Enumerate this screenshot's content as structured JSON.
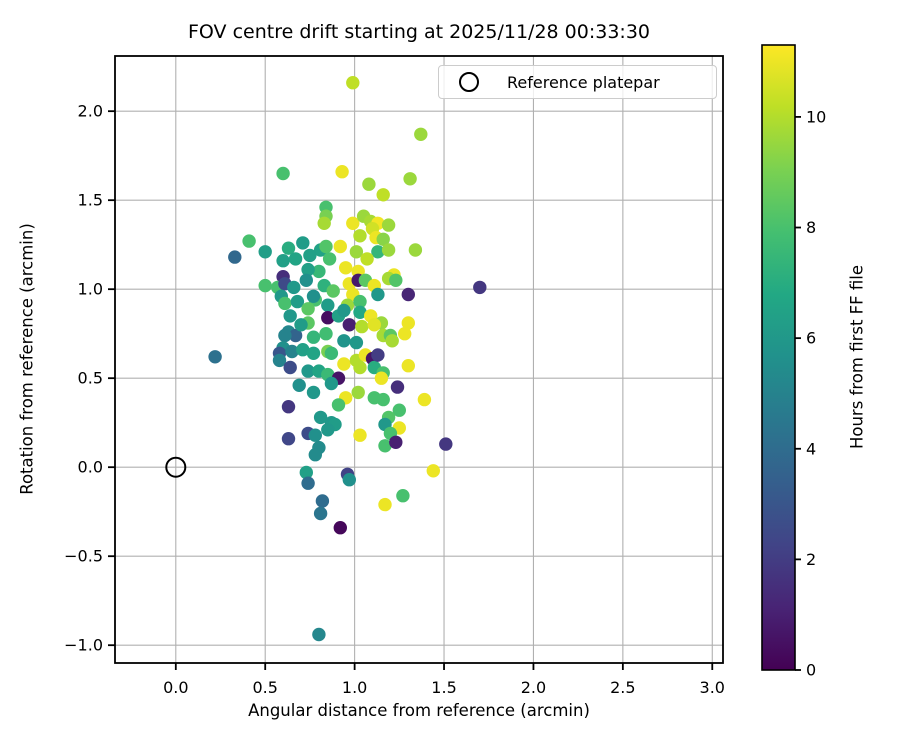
{
  "chart_data": {
    "type": "scatter",
    "title": "FOV centre drift starting at 2025/11/28 00:33:30",
    "xlabel": "Angular distance from reference (arcmin)",
    "ylabel": "Rotation from reference (arcmin)",
    "xlim": [
      -0.34,
      3.06
    ],
    "ylim": [
      -1.1,
      2.31
    ],
    "xticks": [
      0.0,
      0.5,
      1.0,
      1.5,
      2.0,
      2.5,
      3.0
    ],
    "yticks": [
      -1.0,
      -0.5,
      0.0,
      0.5,
      1.0,
      1.5,
      2.0
    ],
    "grid": true,
    "grid_color": "#b0b0b0",
    "spine_color": "#000000",
    "background_color": "#ffffff",
    "legend": {
      "label": "Reference platepar",
      "position": "upper right"
    },
    "reference_point": {
      "x": 0.0,
      "y": 0.0
    },
    "colorbar": {
      "label": "Hours from first FF file",
      "min": 0,
      "max": 11.3,
      "ticks": [
        0,
        2,
        4,
        6,
        8,
        10
      ],
      "colormap": "viridis"
    },
    "colormap_stops": [
      "#440154",
      "#482475",
      "#414487",
      "#355f8d",
      "#2a788e",
      "#21918c",
      "#22a884",
      "#44bf70",
      "#7ad151",
      "#bddf26",
      "#fde725"
    ],
    "marker_radius": 6.7,
    "points": [
      [
        0.99,
        2.16,
        10.2
      ],
      [
        1.37,
        1.87,
        9.6
      ],
      [
        0.6,
        1.65,
        8.0
      ],
      [
        0.93,
        1.66,
        11.0
      ],
      [
        1.08,
        1.59,
        9.6
      ],
      [
        1.16,
        1.53,
        10.2
      ],
      [
        1.31,
        1.62,
        9.6
      ],
      [
        0.84,
        1.46,
        8.0
      ],
      [
        0.84,
        1.41,
        9.0
      ],
      [
        0.83,
        1.37,
        9.8
      ],
      [
        0.99,
        1.37,
        11.0
      ],
      [
        1.05,
        1.41,
        9.6
      ],
      [
        1.09,
        1.38,
        9.8
      ],
      [
        1.13,
        1.37,
        11.1
      ],
      [
        1.19,
        1.36,
        9.6
      ],
      [
        1.1,
        1.34,
        10.5
      ],
      [
        1.03,
        1.3,
        10.0
      ],
      [
        1.12,
        1.29,
        11.0
      ],
      [
        0.41,
        1.27,
        8.0
      ],
      [
        0.33,
        1.18,
        3.8
      ],
      [
        0.5,
        1.21,
        6.3
      ],
      [
        0.63,
        1.23,
        7.0
      ],
      [
        0.71,
        1.26,
        6.2
      ],
      [
        0.81,
        1.22,
        6.5
      ],
      [
        0.84,
        1.24,
        8.2
      ],
      [
        0.92,
        1.24,
        11.0
      ],
      [
        1.16,
        1.28,
        9.3
      ],
      [
        1.13,
        1.21,
        7.4
      ],
      [
        1.19,
        1.22,
        9.6
      ],
      [
        1.34,
        1.22,
        9.6
      ],
      [
        0.6,
        1.16,
        6.4
      ],
      [
        0.67,
        1.17,
        6.6
      ],
      [
        0.75,
        1.19,
        6.4
      ],
      [
        0.86,
        1.17,
        8.0
      ],
      [
        0.95,
        1.12,
        11.0
      ],
      [
        1.01,
        1.21,
        9.6
      ],
      [
        1.02,
        1.1,
        11.0
      ],
      [
        0.8,
        1.1,
        7.5
      ],
      [
        1.07,
        1.17,
        10.2
      ],
      [
        1.22,
        1.08,
        11.0
      ],
      [
        0.74,
        1.11,
        6.4
      ],
      [
        0.6,
        1.07,
        1.5
      ],
      [
        0.73,
        1.05,
        5.6
      ],
      [
        1.19,
        1.06,
        9.8
      ],
      [
        0.5,
        1.02,
        8.0
      ],
      [
        0.57,
        1.01,
        8.0
      ],
      [
        0.61,
        1.03,
        2.5
      ],
      [
        0.66,
        1.01,
        6.0
      ],
      [
        0.83,
        1.02,
        7.2
      ],
      [
        0.88,
        0.99,
        8.4
      ],
      [
        0.97,
        1.03,
        11.0
      ],
      [
        1.02,
        1.05,
        0.8
      ],
      [
        1.06,
        1.05,
        8.4
      ],
      [
        1.11,
        1.02,
        11.0
      ],
      [
        1.23,
        1.05,
        8.2
      ],
      [
        1.3,
        0.97,
        1.2
      ],
      [
        1.7,
        1.01,
        1.8
      ],
      [
        1.13,
        0.97,
        6.0
      ],
      [
        0.99,
        0.97,
        11.0
      ],
      [
        0.59,
        0.96,
        6.0
      ],
      [
        0.61,
        0.92,
        8.0
      ],
      [
        0.68,
        0.93,
        6.2
      ],
      [
        0.78,
        0.94,
        8.0
      ],
      [
        0.85,
        0.91,
        6.2
      ],
      [
        0.77,
        0.96,
        5.6
      ],
      [
        0.74,
        0.89,
        8.4
      ],
      [
        0.96,
        0.91,
        9.6
      ],
      [
        1.03,
        0.93,
        8.0
      ],
      [
        0.64,
        0.85,
        6.0
      ],
      [
        0.85,
        0.84,
        0.4
      ],
      [
        0.91,
        0.85,
        6.4
      ],
      [
        0.94,
        0.88,
        6.0
      ],
      [
        1.03,
        0.87,
        6.8
      ],
      [
        1.09,
        0.85,
        11.0
      ],
      [
        1.15,
        0.81,
        9.6
      ],
      [
        0.63,
        0.76,
        5.2
      ],
      [
        0.67,
        0.74,
        3.6
      ],
      [
        0.61,
        0.74,
        5.0
      ],
      [
        0.74,
        0.81,
        8.4
      ],
      [
        0.84,
        0.75,
        7.8
      ],
      [
        0.97,
        0.8,
        1.0
      ],
      [
        1.04,
        0.79,
        10.0
      ],
      [
        1.11,
        0.8,
        10.8
      ],
      [
        0.7,
        0.8,
        6.2
      ],
      [
        0.77,
        0.73,
        7.4
      ],
      [
        0.94,
        0.71,
        5.8
      ],
      [
        1.01,
        0.7,
        6.0
      ],
      [
        1.16,
        0.74,
        9.8
      ],
      [
        1.2,
        0.74,
        8.4
      ],
      [
        1.21,
        0.71,
        9.8
      ],
      [
        1.3,
        0.81,
        11.0
      ],
      [
        1.28,
        0.75,
        11.0
      ],
      [
        0.6,
        0.67,
        5.6
      ],
      [
        0.58,
        0.64,
        3.0
      ],
      [
        0.65,
        0.65,
        5.0
      ],
      [
        0.71,
        0.66,
        6.4
      ],
      [
        0.77,
        0.64,
        6.6
      ],
      [
        0.58,
        0.6,
        5.0
      ],
      [
        0.64,
        0.56,
        2.6
      ],
      [
        0.85,
        0.65,
        9.0
      ],
      [
        0.87,
        0.64,
        7.6
      ],
      [
        0.94,
        0.58,
        11.0
      ],
      [
        1.01,
        0.6,
        10.0
      ],
      [
        1.03,
        0.56,
        10.0
      ],
      [
        0.74,
        0.54,
        6.0
      ],
      [
        0.8,
        0.54,
        6.6
      ],
      [
        0.85,
        0.52,
        7.6
      ],
      [
        0.91,
        0.5,
        0.6
      ],
      [
        0.87,
        0.47,
        6.0
      ],
      [
        1.06,
        0.63,
        11.0
      ],
      [
        1.1,
        0.61,
        0.6
      ],
      [
        1.11,
        0.56,
        7.0
      ],
      [
        1.16,
        0.53,
        8.0
      ],
      [
        1.3,
        0.57,
        11.0
      ],
      [
        1.15,
        0.5,
        11.0
      ],
      [
        1.13,
        0.63,
        2.0
      ],
      [
        0.69,
        0.46,
        5.6
      ],
      [
        0.77,
        0.42,
        6.0
      ],
      [
        0.63,
        0.34,
        1.8
      ],
      [
        0.95,
        0.39,
        11.0
      ],
      [
        1.02,
        0.42,
        9.6
      ],
      [
        0.91,
        0.35,
        8.0
      ],
      [
        1.24,
        0.45,
        1.5
      ],
      [
        1.39,
        0.38,
        11.0
      ],
      [
        1.11,
        0.39,
        8.0
      ],
      [
        1.16,
        0.38,
        8.0
      ],
      [
        1.25,
        0.32,
        8.0
      ],
      [
        0.81,
        0.28,
        6.0
      ],
      [
        0.87,
        0.25,
        6.0
      ],
      [
        0.89,
        0.24,
        6.2
      ],
      [
        0.74,
        0.19,
        2.6
      ],
      [
        0.63,
        0.16,
        2.4
      ],
      [
        0.78,
        0.18,
        5.6
      ],
      [
        0.85,
        0.21,
        6.0
      ],
      [
        0.8,
        0.11,
        5.4
      ],
      [
        1.19,
        0.28,
        8.2
      ],
      [
        1.17,
        0.24,
        6.0
      ],
      [
        1.25,
        0.22,
        11.0
      ],
      [
        1.2,
        0.19,
        8.0
      ],
      [
        1.17,
        0.12,
        8.0
      ],
      [
        1.23,
        0.14,
        1.0
      ],
      [
        1.51,
        0.13,
        1.8
      ],
      [
        1.03,
        0.18,
        11.0
      ],
      [
        0.78,
        0.07,
        5.4
      ],
      [
        0.73,
        -0.03,
        6.4
      ],
      [
        0.74,
        -0.09,
        4.0
      ],
      [
        0.96,
        -0.04,
        2.2
      ],
      [
        0.97,
        -0.07,
        5.6
      ],
      [
        1.44,
        -0.02,
        11.0
      ],
      [
        0.82,
        -0.19,
        4.0
      ],
      [
        0.81,
        -0.26,
        4.4
      ],
      [
        1.17,
        -0.21,
        11.0
      ],
      [
        1.27,
        -0.16,
        8.0
      ],
      [
        0.92,
        -0.34,
        0.2
      ],
      [
        0.8,
        -0.94,
        5.2
      ],
      [
        0.22,
        0.62,
        4.2
      ]
    ]
  }
}
